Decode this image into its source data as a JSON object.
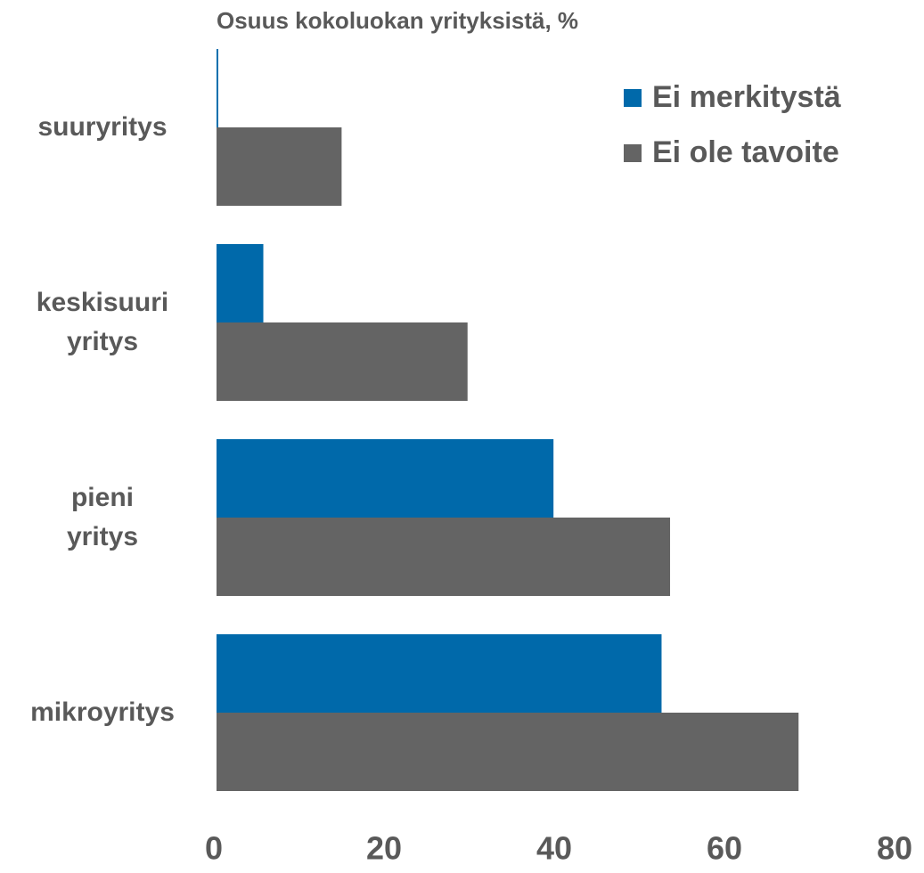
{
  "chart_data": {
    "type": "bar",
    "orientation": "horizontal",
    "title": "Osuus kokoluokan yrityksistä, %",
    "categories": [
      "suuryritys",
      "keskisuuri\nyritys",
      "pieni\nyritys",
      "mikroyritys"
    ],
    "series": [
      {
        "name": "Ei merkitystä",
        "color": "#0069aa",
        "values": [
          0.2,
          5.5,
          39.6,
          52.3
        ]
      },
      {
        "name": "Ei ole tavoite",
        "color": "#646464",
        "values": [
          14.7,
          29.5,
          53.3,
          68.4
        ]
      }
    ],
    "xlim": [
      0,
      80
    ],
    "xticks": [
      0,
      20,
      40,
      60,
      80
    ],
    "grid": false,
    "legend": "upper right"
  }
}
